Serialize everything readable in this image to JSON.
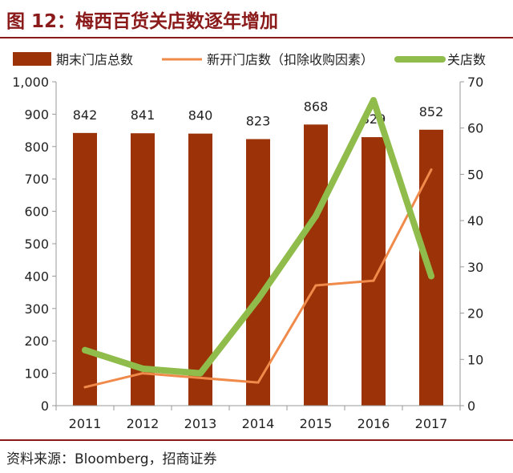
{
  "figure": {
    "title": "图 12：梅西百货关店数逐年增加",
    "source": "资料来源：Bloomberg，招商证券"
  },
  "colors": {
    "bar": "#9b3208",
    "new_stores": "#ef8a4a",
    "closed_stores": "#8fbc4a",
    "accent": "#8b1a1a"
  },
  "chart_data": {
    "type": "bar",
    "categories": [
      "2011",
      "2012",
      "2013",
      "2014",
      "2015",
      "2016",
      "2017"
    ],
    "series": [
      {
        "name": "期末门店总数",
        "type": "bar",
        "axis": "left",
        "values": [
          842,
          841,
          840,
          823,
          868,
          829,
          852
        ],
        "data_labels": [
          "842",
          "841",
          "840",
          "823",
          "868",
          "829",
          "852"
        ]
      },
      {
        "name": "新开门店数（扣除收购因素）",
        "type": "line",
        "axis": "right",
        "values": [
          4,
          7,
          6,
          5,
          26,
          27,
          51
        ]
      },
      {
        "name": "关店数",
        "type": "line",
        "axis": "right",
        "values": [
          12,
          8,
          7,
          23,
          41,
          66,
          28
        ]
      }
    ],
    "y_left": {
      "min": 0,
      "max": 1000,
      "ticks": [
        "0",
        "100",
        "200",
        "300",
        "400",
        "500",
        "600",
        "700",
        "800",
        "900",
        "1,000"
      ]
    },
    "y_right": {
      "min": 0,
      "max": 70,
      "ticks": [
        "0",
        "10",
        "20",
        "30",
        "40",
        "50",
        "60",
        "70"
      ]
    },
    "legend_position": "top",
    "grid": false
  }
}
